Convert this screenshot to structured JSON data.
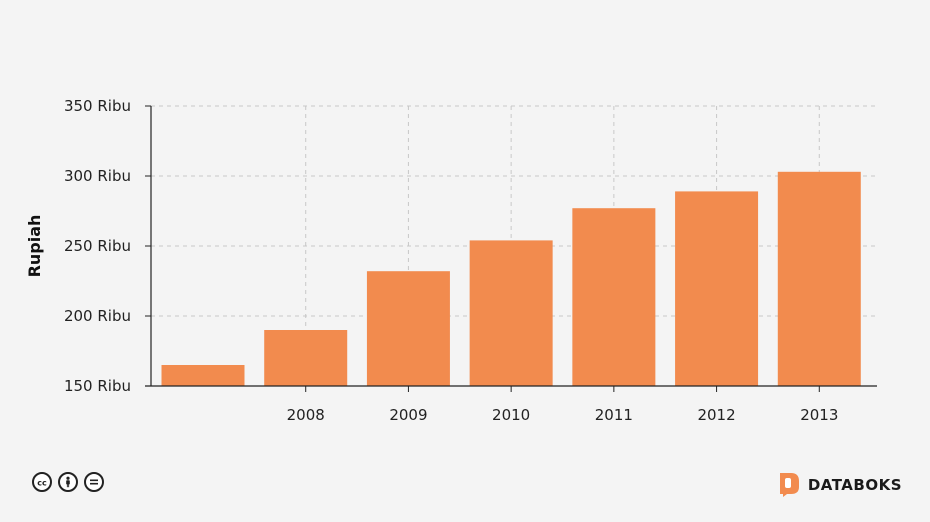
{
  "chart_data": {
    "type": "bar",
    "categories": [
      "",
      "2008",
      "2009",
      "2010",
      "2011",
      "2012",
      "2013"
    ],
    "values": [
      165,
      190,
      232,
      254,
      277,
      289,
      303
    ],
    "ylabel": "Rupiah",
    "xlabel": "",
    "ylim": [
      150,
      350
    ],
    "yticks": [
      150,
      200,
      250,
      300,
      350
    ],
    "ytick_labels": [
      "150 Ribu",
      "200 Ribu",
      "250 Ribu",
      "300 Ribu",
      "350 Ribu"
    ],
    "grid": true,
    "bar_color": "#f28b4e"
  },
  "footer": {
    "brand_name": "DATABOKS",
    "brand_color": "#f28b4e",
    "license_icons": [
      "creative-commons-icon",
      "attribution-icon",
      "no-derivatives-icon"
    ]
  }
}
